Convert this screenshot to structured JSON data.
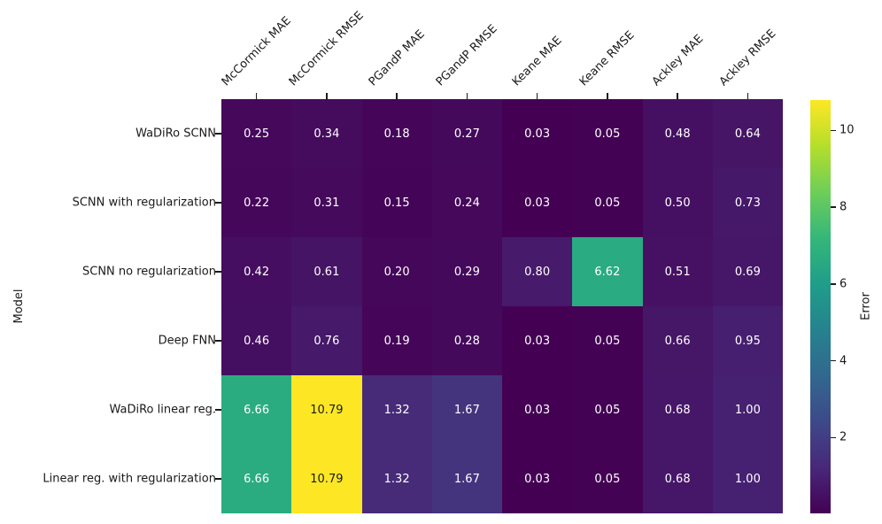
{
  "chart_data": {
    "type": "heatmap",
    "title": "",
    "xlabel": "",
    "ylabel": "Model",
    "colorbar_label": "Error",
    "colormap": "viridis",
    "columns": [
      "McCormick MAE",
      "McCormick RMSE",
      "PGandP MAE",
      "PGandP RMSE",
      "Keane MAE",
      "Keane RMSE",
      "Ackley MAE",
      "Ackley RMSE"
    ],
    "rows": [
      "WaDiRo SCNN",
      "SCNN with regularization",
      "SCNN no regularization",
      "Deep FNN",
      "WaDiRo linear reg.",
      "Linear reg. with regularization"
    ],
    "values": [
      [
        0.25,
        0.34,
        0.18,
        0.27,
        0.03,
        0.05,
        0.48,
        0.64
      ],
      [
        0.22,
        0.31,
        0.15,
        0.24,
        0.03,
        0.05,
        0.5,
        0.73
      ],
      [
        0.42,
        0.61,
        0.2,
        0.29,
        0.8,
        6.62,
        0.51,
        0.69
      ],
      [
        0.46,
        0.76,
        0.19,
        0.28,
        0.03,
        0.05,
        0.66,
        0.95
      ],
      [
        6.66,
        10.79,
        1.32,
        1.67,
        0.03,
        0.05,
        0.68,
        1.0
      ],
      [
        6.66,
        10.79,
        1.32,
        1.67,
        0.03,
        0.05,
        0.68,
        1.0
      ]
    ],
    "vmin": 0.03,
    "vmax": 10.79,
    "colorbar_ticks": [
      2,
      4,
      6,
      8,
      10
    ],
    "annotation_format": "2dp",
    "legend_position": "right",
    "grid": false
  }
}
